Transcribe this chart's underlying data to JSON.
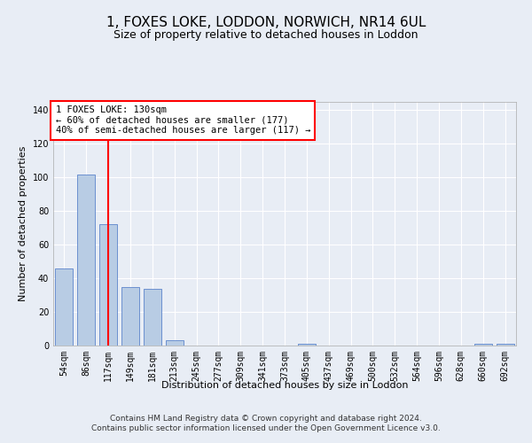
{
  "title": "1, FOXES LOKE, LODDON, NORWICH, NR14 6UL",
  "subtitle": "Size of property relative to detached houses in Loddon",
  "xlabel": "Distribution of detached houses by size in Loddon",
  "ylabel": "Number of detached properties",
  "categories": [
    "54sqm",
    "86sqm",
    "117sqm",
    "149sqm",
    "181sqm",
    "213sqm",
    "245sqm",
    "277sqm",
    "309sqm",
    "341sqm",
    "373sqm",
    "405sqm",
    "437sqm",
    "469sqm",
    "500sqm",
    "532sqm",
    "564sqm",
    "596sqm",
    "628sqm",
    "660sqm",
    "692sqm"
  ],
  "values": [
    46,
    102,
    72,
    35,
    34,
    3,
    0,
    0,
    0,
    0,
    0,
    1,
    0,
    0,
    0,
    0,
    0,
    0,
    0,
    1,
    1
  ],
  "bar_color": "#b8cce4",
  "bar_edge_color": "#4472c4",
  "vline_x": 2,
  "vline_color": "#ff0000",
  "annotation_line1": "1 FOXES LOKE: 130sqm",
  "annotation_line2": "← 60% of detached houses are smaller (177)",
  "annotation_line3": "40% of semi-detached houses are larger (117) →",
  "annotation_box_color": "#ffffff",
  "annotation_box_edge": "#ff0000",
  "ylim": [
    0,
    145
  ],
  "yticks": [
    0,
    20,
    40,
    60,
    80,
    100,
    120,
    140
  ],
  "background_color": "#e8edf5",
  "grid_color": "#ffffff",
  "footer": "Contains HM Land Registry data © Crown copyright and database right 2024.\nContains public sector information licensed under the Open Government Licence v3.0.",
  "title_fontsize": 11,
  "subtitle_fontsize": 9,
  "xlabel_fontsize": 8,
  "ylabel_fontsize": 8,
  "tick_fontsize": 7,
  "annotation_fontsize": 7.5,
  "footer_fontsize": 6.5
}
